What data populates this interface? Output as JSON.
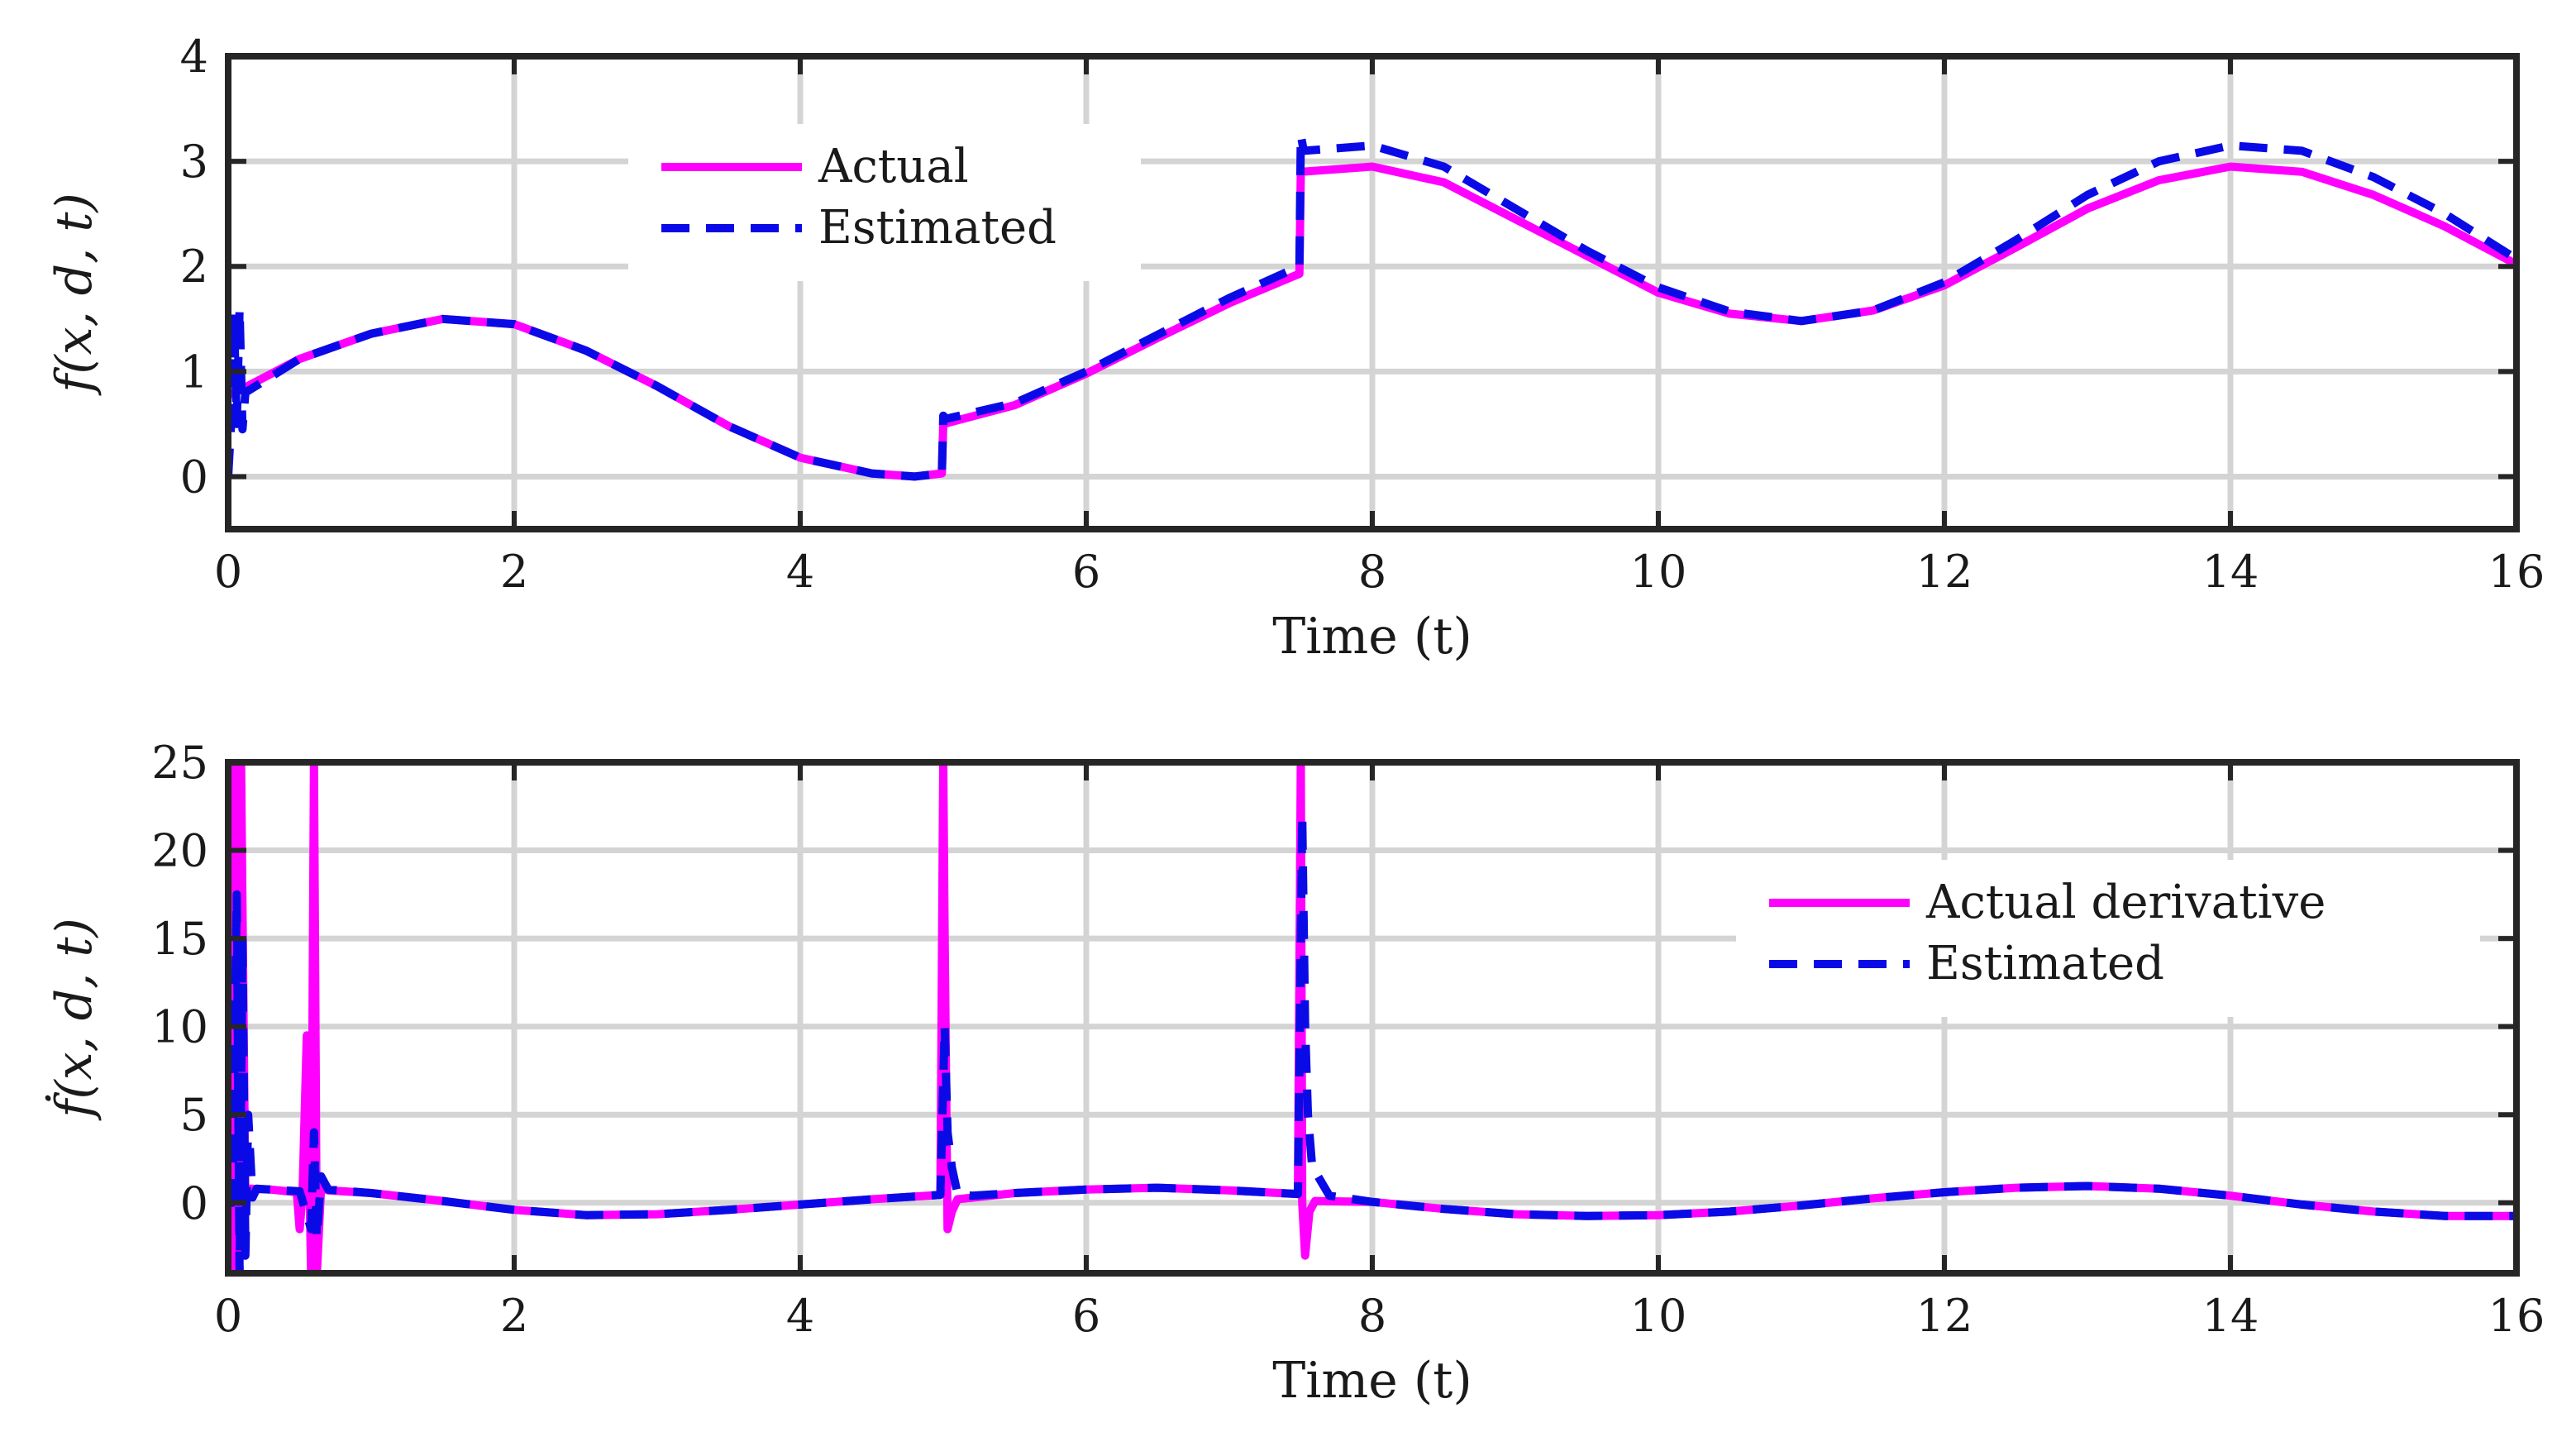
{
  "chart_data": [
    {
      "type": "line",
      "xlabel": "Time (t)",
      "ylabel": "f(x, d, t)",
      "xlim": [
        0,
        16
      ],
      "ylim": [
        -0.5,
        4
      ],
      "xticks": [
        0,
        2,
        4,
        6,
        8,
        10,
        12,
        14,
        16
      ],
      "yticks": [
        0,
        1,
        2,
        3,
        4
      ],
      "grid": true,
      "legend_position": "top-left",
      "series": [
        {
          "name": "Actual",
          "color": "#ff00ff",
          "style": "solid",
          "x": [
            0,
            0.05,
            0.5,
            1.0,
            1.5,
            2.0,
            2.5,
            3.0,
            3.5,
            4.0,
            4.5,
            4.8,
            4.99,
            5.0,
            5.5,
            6.0,
            6.5,
            7.0,
            7.49,
            7.5,
            8.0,
            8.5,
            9.0,
            9.5,
            10.0,
            10.5,
            11.0,
            11.5,
            12.0,
            12.5,
            13.0,
            13.5,
            14.0,
            14.5,
            15.0,
            15.5,
            16.0
          ],
          "y": [
            0.78,
            0.8,
            1.12,
            1.36,
            1.5,
            1.45,
            1.2,
            0.86,
            0.48,
            0.18,
            0.03,
            0.0,
            0.03,
            0.5,
            0.68,
            0.98,
            1.32,
            1.65,
            1.93,
            2.9,
            2.95,
            2.8,
            2.45,
            2.1,
            1.75,
            1.55,
            1.48,
            1.58,
            1.82,
            2.18,
            2.55,
            2.82,
            2.95,
            2.9,
            2.68,
            2.38,
            2.02
          ]
        },
        {
          "name": "Estimated",
          "color": "#0a0ae6",
          "style": "dashed",
          "x": [
            0,
            0.02,
            0.04,
            0.06,
            0.08,
            0.1,
            0.12,
            0.5,
            1.0,
            1.5,
            2.0,
            2.5,
            3.0,
            3.5,
            4.0,
            4.5,
            4.8,
            4.99,
            5.0,
            5.02,
            5.5,
            6.0,
            6.5,
            7.0,
            7.49,
            7.5,
            7.52,
            8.0,
            8.5,
            9.0,
            9.5,
            10.0,
            10.5,
            11.0,
            11.5,
            12.0,
            12.5,
            13.0,
            13.5,
            14.0,
            14.5,
            15.0,
            15.5,
            16.0
          ],
          "y": [
            0.0,
            0.5,
            1.55,
            0.5,
            1.6,
            0.45,
            0.8,
            1.12,
            1.36,
            1.5,
            1.45,
            1.2,
            0.86,
            0.48,
            0.18,
            0.03,
            0.0,
            0.03,
            0.58,
            0.55,
            0.7,
            1.0,
            1.35,
            1.7,
            2.0,
            3.25,
            3.1,
            3.15,
            2.95,
            2.55,
            2.15,
            1.8,
            1.57,
            1.48,
            1.58,
            1.85,
            2.25,
            2.68,
            3.0,
            3.15,
            3.1,
            2.85,
            2.5,
            2.07
          ]
        }
      ]
    },
    {
      "type": "line",
      "xlabel": "Time (t)",
      "ylabel": "ḟ(x, d, t)",
      "xlim": [
        0,
        16
      ],
      "ylim": [
        -4,
        25
      ],
      "xticks": [
        0,
        2,
        4,
        6,
        8,
        10,
        12,
        14,
        16
      ],
      "yticks": [
        0,
        5,
        10,
        15,
        20,
        25
      ],
      "grid": true,
      "legend_position": "top-right",
      "series": [
        {
          "name": "Actual derivative",
          "color": "#ff00ff",
          "style": "solid",
          "x": [
            0,
            0.02,
            0.03,
            0.05,
            0.07,
            0.09,
            0.12,
            0.15,
            0.3,
            0.48,
            0.5,
            0.52,
            0.55,
            0.58,
            0.6,
            0.62,
            0.65,
            0.7,
            1.0,
            1.5,
            2.0,
            2.5,
            3.0,
            3.5,
            4.0,
            4.5,
            4.98,
            5.0,
            5.01,
            5.03,
            5.06,
            5.1,
            5.5,
            6.0,
            6.5,
            7.0,
            7.48,
            7.5,
            7.51,
            7.53,
            7.56,
            7.6,
            8.0,
            8.5,
            9.0,
            9.5,
            10.0,
            10.5,
            11.0,
            11.5,
            12.0,
            12.5,
            13.0,
            13.5,
            14.0,
            14.5,
            15.0,
            15.5,
            16.0
          ],
          "y": [
            0,
            25,
            -4,
            25,
            -3,
            25,
            0,
            0.8,
            0.75,
            0.6,
            -1.5,
            0.6,
            9.5,
            -4,
            25,
            -4,
            0.9,
            0.7,
            0.55,
            0.1,
            -0.4,
            -0.7,
            -0.65,
            -0.4,
            -0.1,
            0.2,
            0.45,
            25,
            15,
            -1.5,
            -0.5,
            0.2,
            0.55,
            0.75,
            0.85,
            0.7,
            0.5,
            25,
            0,
            -3,
            -0.5,
            0.1,
            0.05,
            -0.35,
            -0.65,
            -0.75,
            -0.7,
            -0.5,
            -0.15,
            0.25,
            0.6,
            0.85,
            0.95,
            0.8,
            0.4,
            -0.1,
            -0.5,
            -0.75,
            -0.75
          ]
        },
        {
          "name": "Estimated",
          "color": "#0a0ae6",
          "style": "dashed",
          "x": [
            0,
            0.03,
            0.06,
            0.08,
            0.1,
            0.12,
            0.14,
            0.17,
            0.2,
            0.3,
            0.5,
            0.58,
            0.6,
            0.62,
            0.65,
            0.7,
            1.0,
            1.5,
            2.0,
            2.5,
            3.0,
            3.5,
            4.0,
            4.5,
            4.98,
            5.01,
            5.03,
            5.06,
            5.1,
            5.2,
            5.5,
            6.0,
            6.5,
            7.0,
            7.48,
            7.51,
            7.53,
            7.55,
            7.58,
            7.62,
            7.7,
            8.0,
            8.5,
            9.0,
            9.5,
            10.0,
            10.5,
            11.0,
            11.5,
            12.0,
            12.5,
            13.0,
            13.5,
            14.0,
            14.5,
            15.0,
            15.5,
            16.0
          ],
          "y": [
            0,
            0,
            17.5,
            -4,
            15,
            -3,
            5,
            0.3,
            0.8,
            0.75,
            0.65,
            -1.5,
            4,
            -2,
            1.5,
            0.75,
            0.55,
            0.1,
            -0.4,
            -0.7,
            -0.65,
            -0.4,
            -0.1,
            0.2,
            0.45,
            10,
            4,
            2,
            0.5,
            0.4,
            0.55,
            0.75,
            0.85,
            0.7,
            0.5,
            22,
            10,
            5,
            2,
            1.5,
            0.4,
            0.05,
            -0.35,
            -0.65,
            -0.75,
            -0.7,
            -0.5,
            -0.15,
            0.25,
            0.6,
            0.85,
            0.95,
            0.8,
            0.4,
            -0.1,
            -0.5,
            -0.75,
            -0.75
          ]
        }
      ]
    }
  ]
}
